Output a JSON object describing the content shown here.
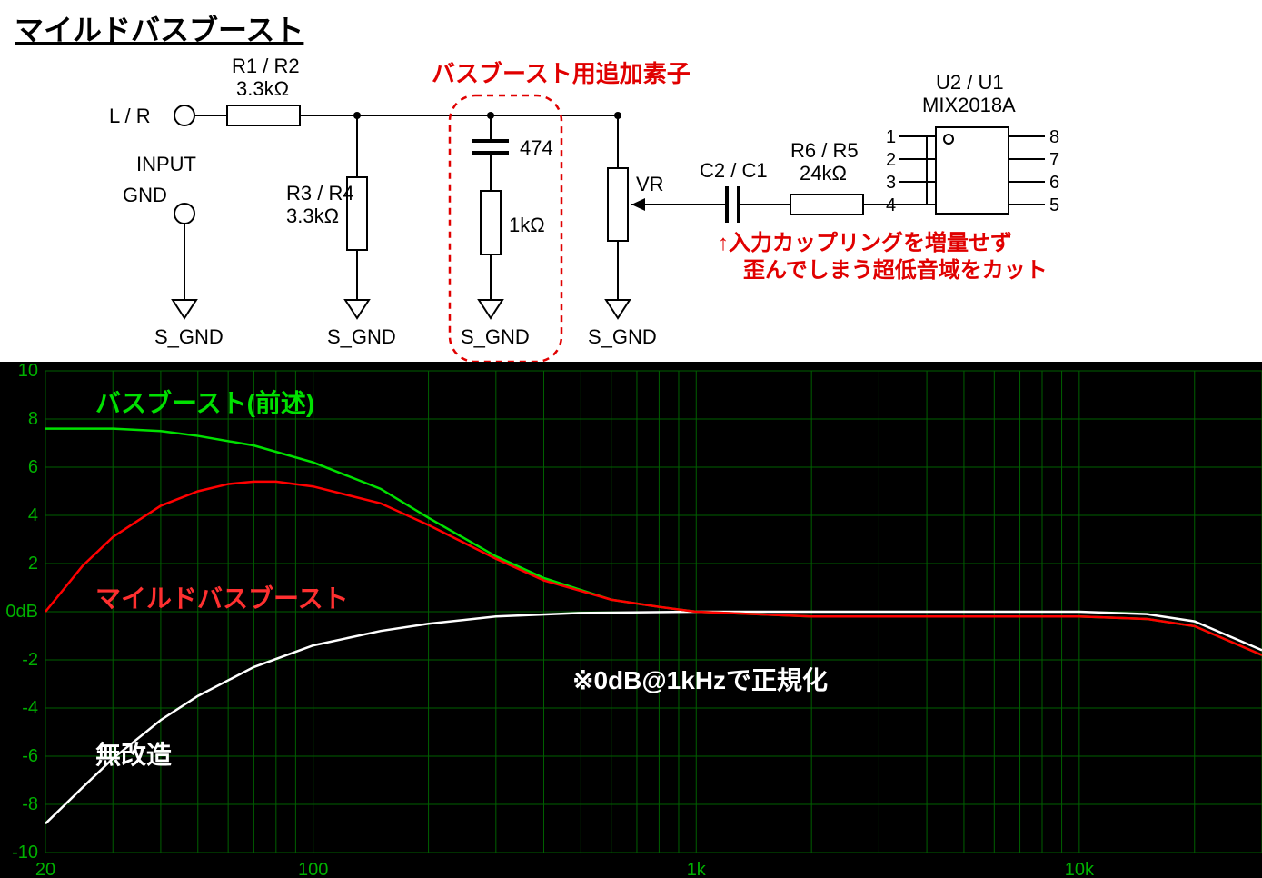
{
  "title": "マイルドバスブースト",
  "schematic": {
    "lr": "L / R",
    "input": "INPUT",
    "gnd": "GND",
    "sgnd": "S_GND",
    "r1": {
      "ref": "R1 / R2",
      "val": "3.3kΩ"
    },
    "r3": {
      "ref": "R3 / R4",
      "val": "3.3kΩ"
    },
    "boost_title": "バスブースト用追加素子",
    "cap": "474",
    "rboost": "1kΩ",
    "vr": "VR",
    "c2": "C2 / C1",
    "r6": {
      "ref": "R6 / R5",
      "val": "24kΩ"
    },
    "ic": {
      "ref": "U2 / U1",
      "val": "MIX2018A"
    },
    "pins": [
      "1",
      "2",
      "3",
      "4",
      "5",
      "6",
      "7",
      "8"
    ],
    "note1": "↑入力カップリングを増量せず",
    "note2": "歪んでしまう超低音域をカット"
  },
  "graph": {
    "type": "bode-magnitude",
    "xaxis": {
      "scale": "log",
      "min": 20,
      "max": 30000,
      "ticks": [
        20,
        100,
        1000,
        10000
      ],
      "tick_labels": [
        "20",
        "100",
        "1k",
        "10k"
      ]
    },
    "yaxis": {
      "scale": "linear",
      "min": -10,
      "max": 10,
      "step": 2,
      "unit": "dB",
      "zero_label": "0dB"
    },
    "background": "#000000",
    "grid_color": "#006000",
    "axis_text_color": "#00b000",
    "curves": {
      "bassboost": {
        "color": "#00e000",
        "width": 2.5,
        "label": "バスブースト(前述)",
        "points": [
          [
            20,
            7.6
          ],
          [
            30,
            7.6
          ],
          [
            40,
            7.5
          ],
          [
            50,
            7.3
          ],
          [
            70,
            6.9
          ],
          [
            100,
            6.2
          ],
          [
            150,
            5.1
          ],
          [
            200,
            3.9
          ],
          [
            300,
            2.3
          ],
          [
            400,
            1.4
          ],
          [
            600,
            0.5
          ],
          [
            800,
            0.2
          ],
          [
            1000,
            0
          ],
          [
            2000,
            -0.2
          ],
          [
            5000,
            -0.2
          ],
          [
            10000,
            -0.2
          ],
          [
            15000,
            -0.3
          ],
          [
            20000,
            -0.6
          ],
          [
            30000,
            -1.8
          ]
        ]
      },
      "mild": {
        "color": "#ff0000",
        "width": 2.5,
        "label": "マイルドバスブースト",
        "points": [
          [
            20,
            0
          ],
          [
            25,
            1.9
          ],
          [
            30,
            3.1
          ],
          [
            40,
            4.4
          ],
          [
            50,
            5.0
          ],
          [
            60,
            5.3
          ],
          [
            70,
            5.4
          ],
          [
            80,
            5.4
          ],
          [
            100,
            5.2
          ],
          [
            150,
            4.5
          ],
          [
            200,
            3.6
          ],
          [
            300,
            2.2
          ],
          [
            400,
            1.3
          ],
          [
            600,
            0.5
          ],
          [
            800,
            0.2
          ],
          [
            1000,
            0
          ],
          [
            2000,
            -0.2
          ],
          [
            5000,
            -0.2
          ],
          [
            10000,
            -0.2
          ],
          [
            15000,
            -0.3
          ],
          [
            20000,
            -0.6
          ],
          [
            30000,
            -1.8
          ]
        ]
      },
      "stock": {
        "color": "#ffffff",
        "width": 2.5,
        "label": "無改造",
        "points": [
          [
            20,
            -8.8
          ],
          [
            25,
            -7.3
          ],
          [
            30,
            -6.1
          ],
          [
            40,
            -4.5
          ],
          [
            50,
            -3.5
          ],
          [
            70,
            -2.3
          ],
          [
            100,
            -1.4
          ],
          [
            150,
            -0.8
          ],
          [
            200,
            -0.5
          ],
          [
            300,
            -0.2
          ],
          [
            500,
            -0.05
          ],
          [
            1000,
            0
          ],
          [
            2000,
            0
          ],
          [
            5000,
            0
          ],
          [
            10000,
            0
          ],
          [
            15000,
            -0.1
          ],
          [
            20000,
            -0.4
          ],
          [
            30000,
            -1.6
          ]
        ]
      }
    },
    "annotation": "※0dB@1kHzで正規化",
    "label_fontsize": 28,
    "axis_fontsize": 20
  }
}
